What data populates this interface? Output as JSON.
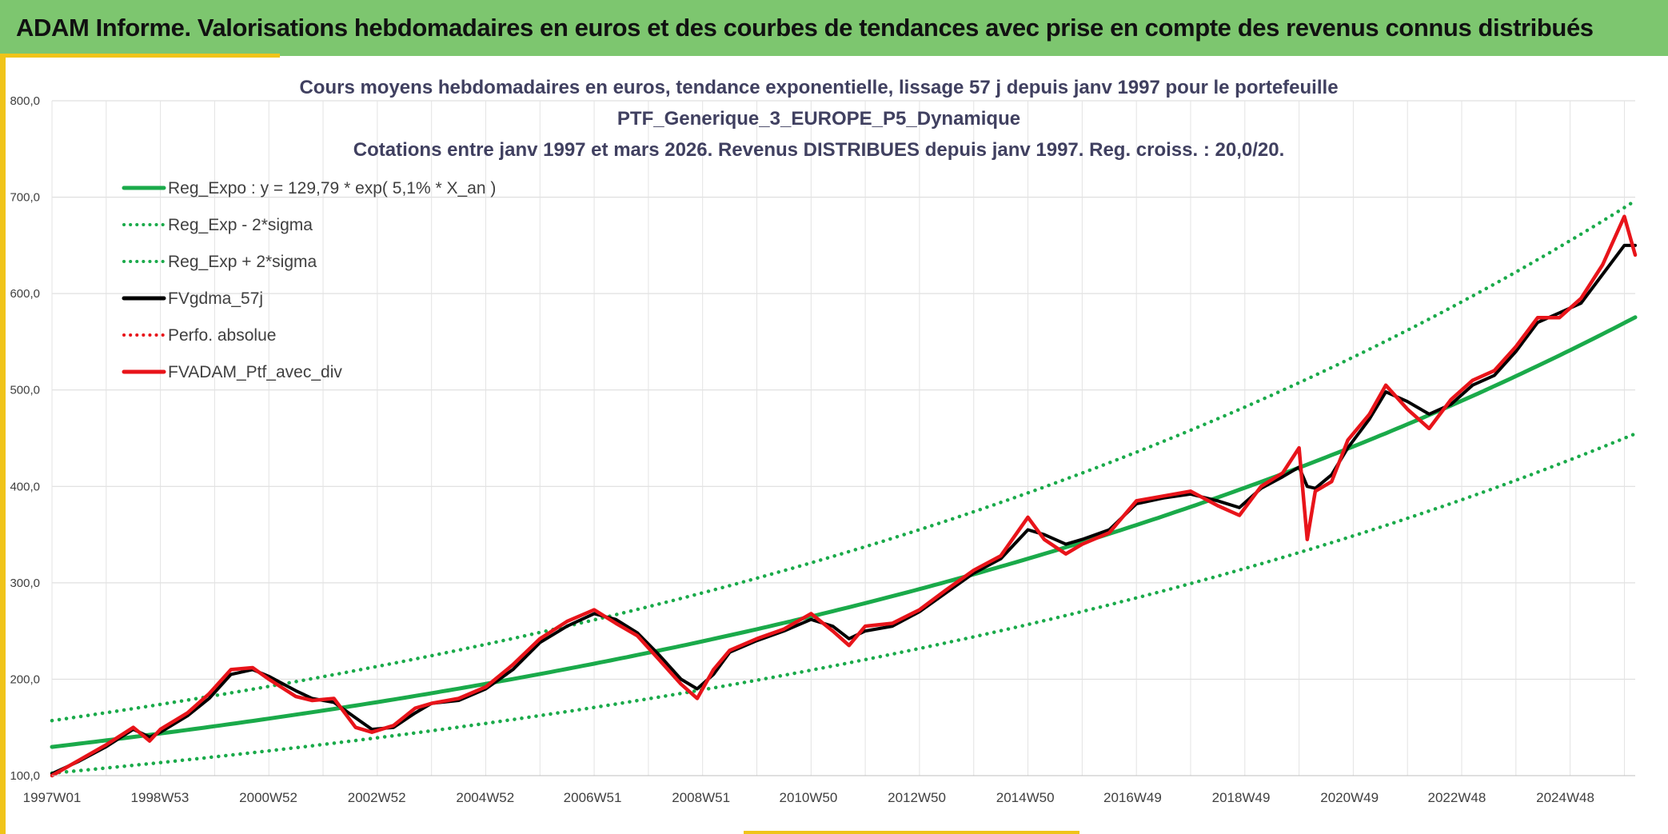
{
  "header": {
    "title": "ADAM Informe. Valorisations hebdomadaires en euros et des courbes de tendances avec prise en compte des revenus connus distribués"
  },
  "colors": {
    "header_bg": "#7dc66f",
    "accent_frame": "#f0c419",
    "regression": "#1aaa4a",
    "smoothed": "#000000",
    "portfolio": "#e8141a"
  },
  "chart_data": {
    "type": "line",
    "title_lines": [
      "Cours moyens hebdomadaires en euros, tendance exponentielle, lissage 57 j depuis janv 1997 pour le portefeuille",
      "PTF_Generique_3_EUROPE_P5_Dynamique",
      "Cotations entre janv 1997 et mars 2026. Revenus DISTRIBUES depuis janv 1997. Reg. croiss. : 20,0/20."
    ],
    "xlabel": "",
    "ylabel": "",
    "x_range_years": [
      1997.0,
      2026.2
    ],
    "ylim": [
      100,
      800
    ],
    "y_ticks": [
      "100,0",
      "200,0",
      "300,0",
      "400,0",
      "500,0",
      "600,0",
      "700,0",
      "800,0"
    ],
    "x_ticks": [
      {
        "label": "1997W01",
        "year": 1997.0
      },
      {
        "label": "1998W53",
        "year": 1998.99
      },
      {
        "label": "2000W52",
        "year": 2000.99
      },
      {
        "label": "2002W52",
        "year": 2002.99
      },
      {
        "label": "2004W52",
        "year": 2004.99
      },
      {
        "label": "2006W51",
        "year": 2006.97
      },
      {
        "label": "2008W51",
        "year": 2008.97
      },
      {
        "label": "2010W50",
        "year": 2010.95
      },
      {
        "label": "2012W50",
        "year": 2012.95
      },
      {
        "label": "2014W50",
        "year": 2014.95
      },
      {
        "label": "2016W49",
        "year": 2016.93
      },
      {
        "label": "2018W49",
        "year": 2018.93
      },
      {
        "label": "2020W49",
        "year": 2020.93
      },
      {
        "label": "2022W48",
        "year": 2022.91
      },
      {
        "label": "2024W48",
        "year": 2024.91
      }
    ],
    "grid": true,
    "legend_position": "top-left",
    "regression": {
      "a": 129.79,
      "rate": 0.051,
      "sigma_band": 0.21
    },
    "series": [
      {
        "name": "Reg_Expo : y = 129,79 * exp( 5,1% *  X_an )",
        "style": "solid",
        "color": "#1aaa4a",
        "x": [
          1997.0,
          2001.0,
          2005.0,
          2009.0,
          2013.0,
          2017.0,
          2021.0,
          2026.2
        ],
        "y": [
          129.8,
          158.8,
          194.6,
          238.0,
          291.4,
          356.5,
          436.8,
          583.0
        ]
      },
      {
        "name": "Reg_Exp - 2*sigma",
        "style": "dotted",
        "color": "#1aaa4a",
        "x": [
          1997.0,
          2001.0,
          2005.0,
          2009.0,
          2013.0,
          2017.0,
          2021.0,
          2026.2
        ],
        "y": [
          104.9,
          128.3,
          157.2,
          192.3,
          235.5,
          288.1,
          352.9,
          471.1
        ]
      },
      {
        "name": "Reg_Exp + 2*sigma",
        "style": "dotted",
        "color": "#1aaa4a",
        "x": [
          1997.0,
          2001.0,
          2005.0,
          2009.0,
          2013.0,
          2017.0,
          2021.0,
          2026.2
        ],
        "y": [
          160.6,
          196.5,
          240.8,
          294.6,
          360.6,
          441.2,
          540.4,
          721.4
        ]
      },
      {
        "name": "FVgdma_57j",
        "style": "solid",
        "color": "#000000",
        "x": [
          1997.0,
          1997.5,
          1998.0,
          1998.5,
          1998.8,
          1999.0,
          1999.5,
          1999.9,
          2000.3,
          2000.7,
          2001.0,
          2001.5,
          2001.8,
          2002.2,
          2002.6,
          2002.9,
          2003.3,
          2003.7,
          2004.0,
          2004.5,
          2005.0,
          2005.5,
          2006.0,
          2006.5,
          2007.0,
          2007.4,
          2007.8,
          2008.2,
          2008.6,
          2008.9,
          2009.2,
          2009.5,
          2010.0,
          2010.5,
          2011.0,
          2011.4,
          2011.7,
          2012.0,
          2012.5,
          2013.0,
          2013.5,
          2014.0,
          2014.5,
          2015.0,
          2015.3,
          2015.7,
          2016.0,
          2016.5,
          2017.0,
          2017.5,
          2018.0,
          2018.5,
          2018.9,
          2019.3,
          2019.7,
          2020.0,
          2020.15,
          2020.3,
          2020.6,
          2020.9,
          2021.3,
          2021.6,
          2022.0,
          2022.4,
          2022.8,
          2023.2,
          2023.6,
          2024.0,
          2024.4,
          2024.8,
          2025.2,
          2025.6,
          2026.0,
          2026.2
        ],
        "y": [
          102,
          115,
          130,
          148,
          140,
          145,
          162,
          180,
          205,
          210,
          203,
          188,
          180,
          176,
          160,
          148,
          150,
          165,
          175,
          178,
          190,
          210,
          238,
          255,
          268,
          262,
          248,
          225,
          200,
          190,
          205,
          228,
          240,
          250,
          262,
          255,
          242,
          250,
          255,
          270,
          290,
          310,
          325,
          355,
          350,
          340,
          345,
          355,
          382,
          388,
          392,
          385,
          378,
          398,
          410,
          420,
          400,
          398,
          412,
          440,
          470,
          498,
          488,
          475,
          485,
          505,
          515,
          540,
          570,
          580,
          590,
          620,
          650,
          650
        ]
      },
      {
        "name": "Perfo. absolue",
        "style": "dotted",
        "color": "#e8141a",
        "x": [],
        "y": []
      },
      {
        "name": "FVADAM_Ptf_avec_div",
        "style": "solid",
        "color": "#e8141a",
        "x": [
          1997.0,
          1997.5,
          1998.0,
          1998.5,
          1998.8,
          1999.0,
          1999.5,
          1999.9,
          2000.3,
          2000.7,
          2001.0,
          2001.5,
          2001.8,
          2002.2,
          2002.6,
          2002.9,
          2003.3,
          2003.7,
          2004.0,
          2004.5,
          2005.0,
          2005.5,
          2006.0,
          2006.5,
          2007.0,
          2007.4,
          2007.8,
          2008.2,
          2008.6,
          2008.9,
          2009.2,
          2009.5,
          2010.0,
          2010.5,
          2011.0,
          2011.4,
          2011.7,
          2012.0,
          2012.5,
          2013.0,
          2013.5,
          2014.0,
          2014.5,
          2015.0,
          2015.3,
          2015.7,
          2016.0,
          2016.5,
          2017.0,
          2017.5,
          2018.0,
          2018.5,
          2018.9,
          2019.3,
          2019.7,
          2020.0,
          2020.15,
          2020.3,
          2020.6,
          2020.9,
          2021.3,
          2021.6,
          2022.0,
          2022.4,
          2022.8,
          2023.2,
          2023.6,
          2024.0,
          2024.4,
          2024.8,
          2025.2,
          2025.6,
          2026.0,
          2026.2
        ],
        "y": [
          100,
          116,
          132,
          150,
          136,
          148,
          165,
          185,
          210,
          212,
          200,
          182,
          178,
          180,
          150,
          145,
          152,
          170,
          175,
          180,
          192,
          215,
          242,
          260,
          272,
          258,
          245,
          220,
          195,
          180,
          210,
          230,
          242,
          252,
          268,
          250,
          235,
          255,
          258,
          272,
          293,
          313,
          328,
          368,
          345,
          330,
          340,
          352,
          385,
          390,
          395,
          380,
          370,
          400,
          414,
          440,
          345,
          395,
          405,
          448,
          475,
          505,
          480,
          460,
          490,
          510,
          520,
          545,
          575,
          575,
          595,
          630,
          680,
          640
        ]
      }
    ]
  }
}
